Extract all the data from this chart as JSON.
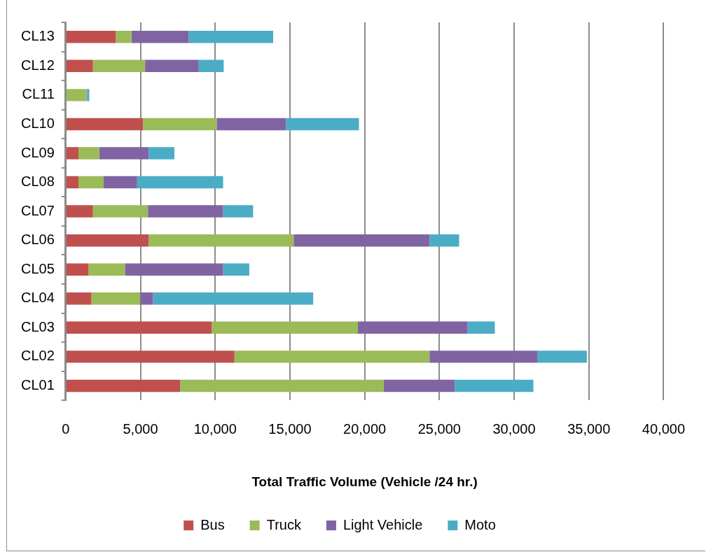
{
  "chart_data": {
    "type": "bar",
    "orientation": "horizontal",
    "stacked": true,
    "xlabel": "Total Traffic Volume (Vehicle /24 hr.)",
    "categories": [
      "CL13",
      "CL12",
      "CL11",
      "CL10",
      "CL09",
      "CL08",
      "CL07",
      "CL06",
      "CL05",
      "CL04",
      "CL03",
      "CL02",
      "CL01"
    ],
    "series": [
      {
        "name": "Bus",
        "color": "#c0504d",
        "values": [
          3350,
          1820,
          0,
          5170,
          860,
          860,
          1820,
          5550,
          1530,
          1720,
          9760,
          11290,
          7660
        ]
      },
      {
        "name": "Truck",
        "color": "#9bbb59",
        "values": [
          1050,
          3490,
          1390,
          4930,
          1390,
          1680,
          3680,
          9700,
          2430,
          3260,
          9790,
          13050,
          13620
        ]
      },
      {
        "name": "Light Vehicle",
        "color": "#8064a2",
        "values": [
          3830,
          3590,
          50,
          4640,
          3300,
          2240,
          5030,
          9100,
          6570,
          860,
          7340,
          7240,
          4750
        ]
      },
      {
        "name": "Moto",
        "color": "#4bacc6",
        "values": [
          5650,
          1670,
          140,
          4880,
          1720,
          5750,
          2010,
          1970,
          1750,
          10720,
          1820,
          3290,
          5260
        ]
      }
    ],
    "xlim": [
      0,
      40000
    ],
    "xticks": [
      0,
      {
        "value": 5000,
        "label": "5,000"
      },
      {
        "value": 10000,
        "label": "10,000"
      },
      {
        "value": 15000,
        "label": "15,000"
      },
      {
        "value": 20000,
        "label": "20,000"
      },
      {
        "value": 25000,
        "label": "25,000"
      },
      {
        "value": 30000,
        "label": "30,000"
      },
      {
        "value": 35000,
        "label": "35,000"
      },
      {
        "value": 40000,
        "label": "40,000"
      }
    ],
    "grid": "x",
    "legend": "bottom"
  }
}
